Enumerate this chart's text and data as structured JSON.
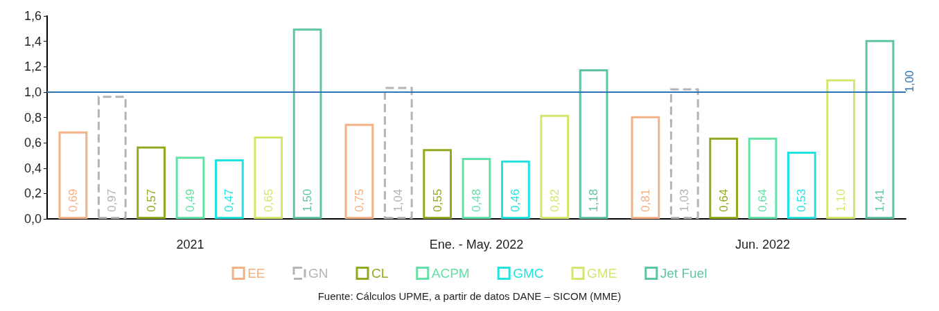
{
  "chart_data": {
    "type": "bar",
    "categories": [
      "2021",
      "Ene. - May. 2022",
      "Jun. 2022"
    ],
    "series": [
      {
        "name": "EE",
        "color": "#f4b183",
        "values": [
          0.69,
          0.75,
          0.81
        ],
        "value_labels": [
          "0,69",
          "0,75",
          "0,81"
        ]
      },
      {
        "name": "GN",
        "color": "#b4b4b4",
        "line_style": "dashed",
        "values": [
          0.97,
          1.04,
          1.03
        ],
        "value_labels": [
          "0,97",
          "1,04",
          "1,03"
        ]
      },
      {
        "name": "CL",
        "color": "#8eaa1e",
        "values": [
          0.57,
          0.55,
          0.64
        ],
        "value_labels": [
          "0,57",
          "0,55",
          "0,64"
        ]
      },
      {
        "name": "ACPM",
        "color": "#63e0a4",
        "values": [
          0.49,
          0.48,
          0.64
        ],
        "value_labels": [
          "0,49",
          "0,48",
          "0,64"
        ]
      },
      {
        "name": "GMC",
        "color": "#22e2e0",
        "values": [
          0.47,
          0.46,
          0.53
        ],
        "value_labels": [
          "0,47",
          "0,46",
          "0,53"
        ]
      },
      {
        "name": "GME",
        "color": "#d2e86c",
        "values": [
          0.65,
          0.82,
          1.1
        ],
        "value_labels": [
          "0,65",
          "0,82",
          "1,10"
        ]
      },
      {
        "name": "Jet Fuel",
        "color": "#5cc4a4",
        "values": [
          1.5,
          1.18,
          1.41
        ],
        "value_labels": [
          "1,50",
          "1,18",
          "1,41"
        ]
      }
    ],
    "ylim": [
      0,
      1.6
    ],
    "yticks": [
      {
        "value": 0,
        "label": "0,0"
      },
      {
        "value": 0.2,
        "label": "0,2"
      },
      {
        "value": 0.4,
        "label": "0,4"
      },
      {
        "value": 0.6,
        "label": "0,6"
      },
      {
        "value": 0.8,
        "label": "0,8"
      },
      {
        "value": 1.0,
        "label": "1,0"
      },
      {
        "value": 1.2,
        "label": "1,2"
      },
      {
        "value": 1.4,
        "label": "1,4"
      },
      {
        "value": 1.6,
        "label": "1,6"
      }
    ],
    "ref_lines": [
      {
        "axis": "y",
        "value": 1.0,
        "label": "1,00",
        "color": "#2e75b6"
      }
    ],
    "legend": "bottom",
    "grid": false,
    "annotations": [
      "Fuente: Cálculos UPME, a partir de datos DANE – SICOM (MME)"
    ]
  }
}
